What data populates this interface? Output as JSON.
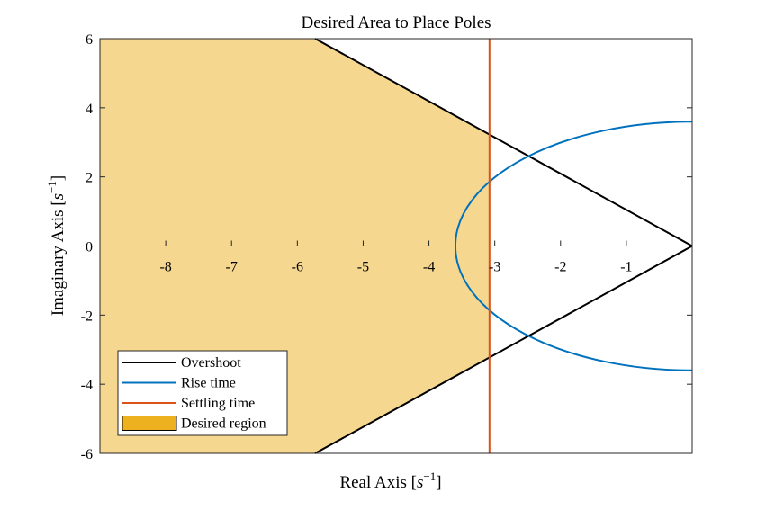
{
  "chart_data": {
    "type": "line",
    "title": "Desired Area to Place Poles",
    "xlabel": {
      "prefix": "Real Axis [",
      "var": "s",
      "sup": "−1",
      "suffix": "]"
    },
    "ylabel": {
      "prefix": "Imaginary Axis [",
      "var": "s",
      "sup": "−1",
      "suffix": "]"
    },
    "xlim": [
      -9,
      0
    ],
    "ylim": [
      -6,
      6
    ],
    "xticks": [
      -8,
      -7,
      -6,
      -5,
      -4,
      -3,
      -2,
      -1
    ],
    "xtick_labels": [
      "-8",
      "-7",
      "-6",
      "-5",
      "-4",
      "-3",
      "-2",
      "-1"
    ],
    "yticks": [
      -6,
      -4,
      -2,
      0,
      2,
      4,
      6
    ],
    "ytick_labels": [
      "-6",
      "-4",
      "-2",
      "0",
      "2",
      "4",
      "6"
    ],
    "grid": false,
    "legend_position": "bottom-left",
    "series": [
      {
        "name": "Overshoot",
        "color": "#000000",
        "segments": [
          {
            "x": [
              -5.73,
              0
            ],
            "y": [
              6,
              0
            ]
          },
          {
            "x": [
              -5.73,
              0
            ],
            "y": [
              -6,
              0
            ]
          }
        ]
      },
      {
        "name": "Rise time",
        "color": "#0072bd",
        "shape": "semicircle",
        "center": [
          0,
          0
        ],
        "radius": 3.6,
        "angle_range_deg": [
          90,
          270
        ]
      },
      {
        "name": "Settling time",
        "color": "#d95319",
        "x": [
          -3.08,
          -3.08
        ],
        "y": [
          -6,
          6
        ]
      },
      {
        "name": "Desired region",
        "color": "#edb120",
        "fill_color": "#f5d78f",
        "type": "area",
        "polygon_x": [
          -9,
          -5.73,
          -3.08,
          -3.08,
          -5.73,
          -9
        ],
        "polygon_y": [
          6,
          6,
          3.22,
          -3.22,
          -6,
          -6
        ]
      }
    ]
  }
}
